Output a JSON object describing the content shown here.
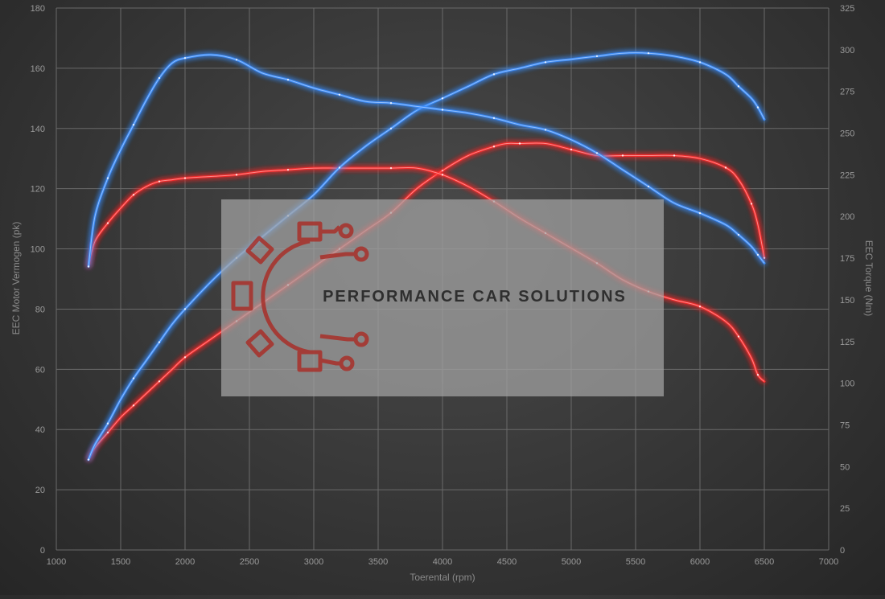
{
  "chart_data": {
    "type": "line",
    "title": "",
    "xlabel": "Toerental (rpm)",
    "ylabel_left": "EEC Motor Vermogen (pk)",
    "ylabel_right": "EEC Torque (Nm)",
    "xlim": [
      1000,
      7000
    ],
    "ylim_left": [
      0,
      180
    ],
    "ylim_right": [
      0,
      325
    ],
    "x_ticks": [
      "1000",
      "1500",
      "2000",
      "2500",
      "3000",
      "3500",
      "4000",
      "4500",
      "5000",
      "5500",
      "6000",
      "6500",
      "7000"
    ],
    "y_ticks_left": [
      "0",
      "20",
      "40",
      "60",
      "80",
      "100",
      "120",
      "140",
      "160",
      "180"
    ],
    "y_ticks_right": [
      "0",
      "25",
      "50",
      "75",
      "100",
      "125",
      "150",
      "175",
      "200",
      "225",
      "250",
      "275",
      "300",
      "325"
    ],
    "grid": true,
    "legend": "none",
    "series": [
      {
        "axis": "left",
        "color": "#ff2a2a",
        "style": "power",
        "x": [
          1250,
          1300,
          1400,
          1500,
          1600,
          1700,
          1800,
          1900,
          2000,
          2200,
          2400,
          2600,
          2800,
          3000,
          3200,
          3400,
          3600,
          3800,
          4000,
          4200,
          4400,
          4500,
          4600,
          4800,
          5000,
          5200,
          5400,
          5600,
          5800,
          6000,
          6200,
          6300,
          6400,
          6450,
          6500
        ],
        "y": [
          30,
          34,
          39,
          44,
          48,
          52,
          56,
          60,
          64,
          70,
          76,
          82,
          88,
          94,
          100,
          106,
          112,
          120,
          126,
          131,
          134,
          135,
          135,
          135,
          133,
          131,
          131,
          131,
          131,
          130,
          127,
          123,
          115,
          108,
          97
        ]
      },
      {
        "axis": "right",
        "color": "#ff2a2a",
        "style": "torque",
        "x": [
          1250,
          1300,
          1400,
          1500,
          1600,
          1700,
          1800,
          1900,
          2000,
          2200,
          2400,
          2600,
          2800,
          3000,
          3200,
          3400,
          3600,
          3800,
          4000,
          4200,
          4400,
          4600,
          4800,
          5000,
          5200,
          5400,
          5600,
          5800,
          6000,
          6200,
          6300,
          6400,
          6450,
          6500
        ],
        "y": [
          170,
          185,
          196,
          205,
          213,
          218,
          221,
          222,
          223,
          224,
          225,
          227,
          228,
          229,
          229,
          229,
          229,
          229,
          225,
          218,
          209,
          199,
          190,
          181,
          172,
          162,
          155,
          150,
          146,
          137,
          128,
          115,
          105,
          101
        ]
      },
      {
        "axis": "left",
        "color": "#3a8eff",
        "style": "power",
        "x": [
          1250,
          1300,
          1400,
          1500,
          1600,
          1700,
          1800,
          1900,
          2000,
          2200,
          2400,
          2600,
          2800,
          3000,
          3200,
          3400,
          3600,
          3800,
          4000,
          4200,
          4400,
          4600,
          4800,
          5000,
          5200,
          5400,
          5600,
          5800,
          6000,
          6200,
          6300,
          6400,
          6450,
          6500
        ],
        "y": [
          30,
          35,
          42,
          50,
          57,
          63,
          69,
          75,
          80,
          89,
          97,
          104,
          111,
          118,
          127,
          134,
          140,
          146,
          150,
          154,
          158,
          160,
          162,
          163,
          164,
          165,
          165,
          164,
          162,
          158,
          154,
          150,
          147,
          143
        ]
      },
      {
        "axis": "right",
        "color": "#3a8eff",
        "style": "torque",
        "x": [
          1250,
          1300,
          1400,
          1500,
          1600,
          1700,
          1800,
          1900,
          2000,
          2200,
          2400,
          2600,
          2800,
          3000,
          3200,
          3400,
          3600,
          3800,
          4000,
          4200,
          4400,
          4600,
          4800,
          5000,
          5200,
          5400,
          5600,
          5800,
          6000,
          6200,
          6300,
          6400,
          6450,
          6500
        ],
        "y": [
          170,
          200,
          223,
          240,
          255,
          270,
          283,
          292,
          295,
          297,
          294,
          286,
          282,
          277,
          273,
          269,
          268,
          266,
          264,
          262,
          259,
          255,
          252,
          246,
          238,
          228,
          218,
          208,
          202,
          195,
          189,
          182,
          177,
          172
        ]
      }
    ]
  },
  "watermark": {
    "text": "PERFORMANCE CAR SOLUTIONS",
    "logo_icon": "gear-circuit-logo",
    "logo_color": "#a8302a"
  }
}
